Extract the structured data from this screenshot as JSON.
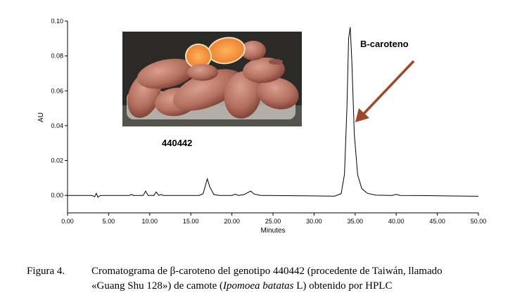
{
  "chart_data": {
    "type": "line",
    "title": "",
    "xlabel": "Minutes",
    "ylabel": "AU",
    "xlim": [
      0,
      50
    ],
    "ylim": [
      -0.01,
      0.1
    ],
    "x_ticks": [
      "0.00",
      "5.00",
      "10.00",
      "15.00",
      "20.00",
      "25.00",
      "30.00",
      "35.00",
      "40.00",
      "45.00",
      "50.00"
    ],
    "y_ticks": [
      "0.00",
      "0.02",
      "0.04",
      "0.06",
      "0.08",
      "0.10"
    ],
    "grid": false,
    "legend": "none",
    "series": [
      {
        "color": "#000000",
        "x": [
          0,
          3.0,
          3.3,
          3.5,
          3.7,
          4.0,
          7.5,
          7.8,
          8.0,
          9.2,
          9.5,
          9.8,
          10.5,
          10.8,
          11.1,
          11.4,
          11.7,
          12.0,
          16.0,
          16.5,
          16.8,
          17.0,
          17.3,
          17.8,
          18.5,
          20.0,
          20.4,
          20.8,
          21.5,
          22.0,
          22.3,
          22.7,
          23.5,
          30.0,
          32.5,
          33.3,
          33.7,
          34.0,
          34.2,
          34.4,
          34.6,
          34.9,
          35.3,
          35.8,
          36.5,
          37.5,
          39.5,
          40.0,
          40.5,
          43.0,
          50.0
        ],
        "y": [
          0.0,
          0.0,
          -0.0007,
          0.0012,
          -0.001,
          0.0,
          0.0,
          0.0006,
          0.0,
          0.0,
          0.0025,
          0.0,
          0.0,
          0.002,
          0.0,
          0.0005,
          0.0,
          0.0,
          0.0,
          0.001,
          0.006,
          0.0095,
          0.005,
          0.0005,
          0.0,
          0.0,
          0.0007,
          0.0,
          0.0005,
          0.0018,
          0.0025,
          0.0008,
          0.0,
          -0.0003,
          -0.0004,
          0.001,
          0.012,
          0.05,
          0.09,
          0.0965,
          0.077,
          0.035,
          0.012,
          0.004,
          0.0012,
          0.0002,
          0.0,
          0.0006,
          0.0,
          -0.0001,
          -0.0005
        ]
      }
    ],
    "annotations": [
      {
        "text": "B-caroteno",
        "x": 34.4,
        "y": 0.097,
        "arrow": true
      },
      {
        "text": "440442"
      }
    ]
  },
  "photo": {
    "description_icon": "sweet-potato-photo-icon"
  },
  "caption": {
    "prefix": "Figura 4.",
    "line1": "Cromatograma de β-caroteno del genotipo 440442 (procedente de Taiwán, llamado",
    "line2_before_italic": "«Guang Shu 128») de camote (",
    "line2_italic": "Ipomoea batatas",
    "line2_after_italic": " L) obtenido por HPLC"
  }
}
